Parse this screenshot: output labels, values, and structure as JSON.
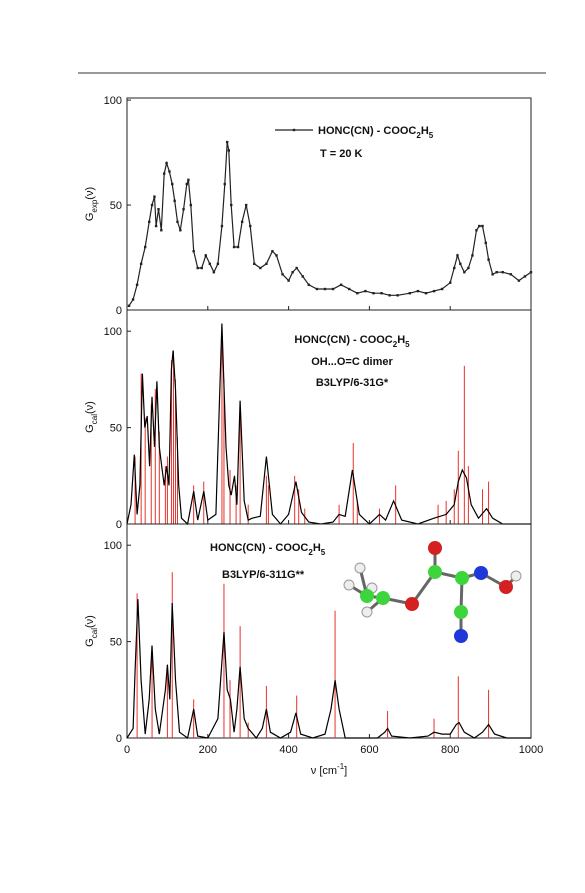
{
  "chart_data": [
    {
      "type": "line",
      "ylabel": [
        "G",
        {
          "text": "exp",
          "script": "sub"
        },
        "(ν)"
      ],
      "xlim": [
        0,
        1000
      ],
      "ylim": [
        0,
        101
      ],
      "yticks": [
        0,
        50,
        100
      ],
      "grid": false,
      "annotations": [
        [
          "T = 20 K"
        ]
      ],
      "series": [
        {
          "type": "line",
          "marker": true,
          "color": "#222222",
          "name": [
            "HONC(CN) - COOC",
            {
              "text": "2",
              "script": "sub"
            },
            "H",
            {
              "text": "5",
              "script": "sub"
            }
          ],
          "x": [
            5,
            15,
            25,
            35,
            45,
            55,
            62,
            68,
            72,
            78,
            85,
            92,
            98,
            105,
            112,
            118,
            125,
            132,
            140,
            148,
            152,
            158,
            165,
            175,
            185,
            195,
            205,
            215,
            225,
            235,
            242,
            248,
            252,
            258,
            265,
            275,
            285,
            295,
            305,
            315,
            330,
            345,
            360,
            370,
            385,
            400,
            410,
            420,
            435,
            450,
            470,
            490,
            510,
            530,
            550,
            570,
            590,
            610,
            630,
            650,
            670,
            700,
            720,
            740,
            760,
            780,
            800,
            810,
            818,
            825,
            835,
            845,
            855,
            865,
            872,
            880,
            888,
            895,
            905,
            915,
            930,
            950,
            970,
            985,
            1000
          ],
          "values": [
            2,
            5,
            12,
            22,
            30,
            42,
            50,
            54,
            40,
            48,
            38,
            65,
            70,
            66,
            60,
            52,
            42,
            38,
            48,
            60,
            62,
            50,
            28,
            20,
            20,
            26,
            22,
            18,
            22,
            40,
            60,
            80,
            76,
            50,
            30,
            30,
            42,
            50,
            40,
            22,
            20,
            22,
            28,
            26,
            17,
            14,
            18,
            20,
            16,
            12,
            10,
            10,
            10,
            12,
            10,
            8,
            9,
            8,
            8,
            7,
            7,
            8,
            9,
            8,
            9,
            10,
            13,
            20,
            26,
            22,
            18,
            20,
            26,
            38,
            40,
            40,
            32,
            24,
            17,
            18,
            18,
            17,
            14,
            16,
            18
          ]
        }
      ]
    },
    {
      "type": "line",
      "ylabel": [
        "G",
        {
          "text": "cal",
          "script": "sub"
        },
        "(ν)"
      ],
      "xlim": [
        0,
        1000
      ],
      "ylim": [
        0,
        111
      ],
      "yticks": [
        0,
        50,
        100
      ],
      "grid": false,
      "annotations": [
        [
          "HONC(CN) - COOC",
          {
            "text": "2",
            "script": "sub"
          },
          "H",
          {
            "text": "5",
            "script": "sub"
          }
        ],
        [
          "OH...O=C dimer"
        ],
        [
          "B3LYP/6-31G*"
        ]
      ],
      "series": [
        {
          "type": "stick",
          "color": "#e8322a",
          "x": [
            20,
            35,
            45,
            60,
            70,
            80,
            95,
            100,
            110,
            115,
            120,
            125,
            165,
            190,
            235,
            240,
            255,
            270,
            280,
            300,
            345,
            350,
            415,
            425,
            440,
            525,
            560,
            570,
            625,
            665,
            770,
            790,
            810,
            820,
            835,
            845,
            880,
            895
          ],
          "values": [
            35,
            78,
            55,
            62,
            70,
            48,
            30,
            35,
            85,
            90,
            75,
            45,
            20,
            22,
            100,
            75,
            28,
            20,
            60,
            10,
            25,
            20,
            25,
            18,
            8,
            10,
            42,
            12,
            8,
            20,
            10,
            12,
            18,
            38,
            82,
            30,
            18,
            22
          ]
        },
        {
          "type": "line",
          "color": "#000000",
          "x": [
            0,
            10,
            18,
            25,
            32,
            38,
            44,
            50,
            56,
            62,
            68,
            74,
            80,
            86,
            92,
            98,
            104,
            110,
            114,
            120,
            128,
            135,
            150,
            165,
            175,
            190,
            200,
            220,
            235,
            245,
            252,
            258,
            266,
            272,
            280,
            290,
            300,
            310,
            330,
            345,
            360,
            380,
            400,
            418,
            432,
            450,
            480,
            510,
            525,
            540,
            558,
            575,
            600,
            625,
            640,
            660,
            680,
            720,
            760,
            790,
            810,
            820,
            830,
            840,
            852,
            870,
            890,
            905,
            930,
            1000
          ],
          "values": [
            0,
            10,
            36,
            5,
            20,
            78,
            50,
            56,
            30,
            66,
            40,
            74,
            40,
            30,
            20,
            30,
            20,
            80,
            90,
            70,
            20,
            3,
            0,
            17,
            2,
            17,
            2,
            5,
            104,
            40,
            20,
            15,
            25,
            10,
            64,
            12,
            2,
            3,
            4,
            35,
            5,
            0,
            5,
            22,
            6,
            1,
            0,
            1,
            5,
            4,
            28,
            5,
            0,
            5,
            2,
            12,
            2,
            0,
            3,
            5,
            10,
            22,
            28,
            24,
            10,
            3,
            8,
            3,
            0,
            0
          ]
        }
      ]
    },
    {
      "type": "line",
      "ylabel": [
        "G",
        {
          "text": "cal",
          "script": "sub"
        },
        "(ν)"
      ],
      "xlabel": [
        "ν  [cm",
        {
          "text": "-1",
          "script": "super"
        },
        "]"
      ],
      "xlim": [
        0,
        1000
      ],
      "xticks": [
        0,
        200,
        400,
        600,
        800,
        1000
      ],
      "ylim": [
        0,
        111
      ],
      "yticks": [
        0,
        50,
        100
      ],
      "grid": false,
      "annotations": [
        [
          "HONC(CN) - COOC",
          {
            "text": "2",
            "script": "sub"
          },
          "H",
          {
            "text": "5",
            "script": "sub"
          }
        ],
        [
          "B3LYP/6-311G**"
        ]
      ],
      "series": [
        {
          "type": "stick",
          "color": "#e8322a",
          "x": [
            25,
            62,
            100,
            112,
            165,
            240,
            255,
            280,
            300,
            345,
            420,
            515,
            645,
            760,
            820,
            895
          ],
          "values": [
            75,
            48,
            38,
            86,
            20,
            80,
            30,
            58,
            8,
            27,
            22,
            66,
            14,
            10,
            32,
            25
          ]
        },
        {
          "type": "line",
          "color": "#000000",
          "x": [
            0,
            15,
            20,
            27,
            35,
            45,
            55,
            62,
            70,
            80,
            95,
            100,
            106,
            112,
            120,
            130,
            150,
            165,
            175,
            200,
            225,
            240,
            248,
            256,
            265,
            272,
            280,
            290,
            300,
            320,
            335,
            345,
            355,
            380,
            405,
            418,
            430,
            460,
            490,
            505,
            515,
            525,
            540,
            620,
            638,
            645,
            655,
            700,
            745,
            760,
            780,
            800,
            815,
            822,
            835,
            860,
            880,
            895,
            910,
            940,
            1000
          ],
          "values": [
            0,
            5,
            35,
            72,
            30,
            2,
            20,
            48,
            15,
            2,
            25,
            38,
            20,
            70,
            30,
            3,
            0,
            15,
            1,
            0,
            10,
            55,
            25,
            20,
            3,
            15,
            37,
            10,
            5,
            0,
            5,
            15,
            3,
            0,
            3,
            13,
            2,
            0,
            2,
            15,
            30,
            15,
            0,
            0,
            3,
            5,
            1,
            0,
            1,
            3,
            2,
            2,
            7,
            8,
            3,
            0,
            3,
            7,
            2,
            0,
            0
          ]
        }
      ]
    }
  ]
}
